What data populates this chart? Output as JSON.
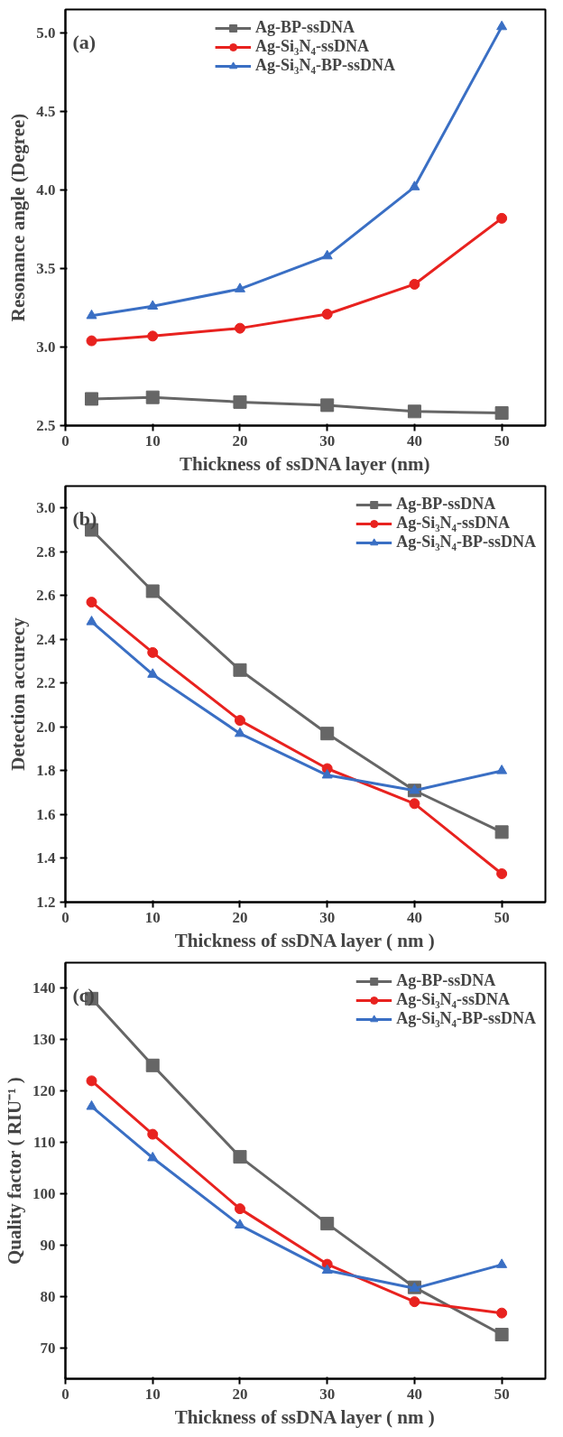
{
  "chart_data": [
    {
      "type": "line",
      "annotations": [
        "(a)"
      ],
      "xlabel": "Thickness of ssDNA layer (nm)",
      "ylabel": "Resonance angle (Degree)",
      "x": [
        3,
        10,
        20,
        30,
        40,
        50
      ],
      "xlim": [
        0,
        55
      ],
      "xticks": [
        0,
        10,
        20,
        30,
        40,
        50
      ],
      "ylim": [
        2.5,
        5.15
      ],
      "yticks": [
        2.5,
        {
          "value": 3,
          "label": "3.0"
        },
        3.5,
        {
          "value": 4,
          "label": "4.0"
        },
        4.5,
        {
          "value": 5,
          "label": "5.0"
        }
      ],
      "grid": false,
      "legend": "top",
      "line_style": "solid",
      "series": [
        {
          "name": "Ag-BP-ssDNA",
          "color": "#666666",
          "marker": "square",
          "values": [
            2.67,
            2.68,
            2.65,
            2.63,
            2.59,
            2.58
          ]
        },
        {
          "name": "Ag-Si₃N₄-ssDNA",
          "color": "#e8221f",
          "marker": "circle",
          "values": [
            3.04,
            3.07,
            3.12,
            3.21,
            3.4,
            3.82
          ]
        },
        {
          "name": "Ag-Si₃N₄-BP-ssDNA",
          "color": "#3a6fc4",
          "marker": "triangle",
          "values": [
            3.2,
            3.26,
            3.37,
            3.58,
            4.02,
            5.04
          ]
        }
      ]
    },
    {
      "type": "line",
      "annotations": [
        "(b)"
      ],
      "xlabel": "Thickness of ssDNA layer ( nm )",
      "ylabel": "Detection accurecy",
      "x": [
        3,
        10,
        20,
        30,
        40,
        50
      ],
      "xlim": [
        0,
        55
      ],
      "xticks": [
        0,
        10,
        20,
        30,
        40,
        50
      ],
      "ylim": [
        1.2,
        3.1
      ],
      "yticks": [
        1.2,
        1.4,
        1.6,
        1.8,
        {
          "value": 2,
          "label": "2.0"
        },
        2.2,
        2.4,
        2.6,
        2.8,
        {
          "value": 3,
          "label": "3.0"
        }
      ],
      "grid": false,
      "legend": "top right",
      "line_style": "solid",
      "series": [
        {
          "name": "Ag-BP-ssDNA",
          "color": "#666666",
          "marker": "square",
          "values": [
            2.9,
            2.62,
            2.26,
            1.97,
            1.71,
            1.52
          ]
        },
        {
          "name": "Ag-Si₃N₄-ssDNA",
          "color": "#e8221f",
          "marker": "circle",
          "values": [
            2.57,
            2.34,
            2.03,
            1.81,
            1.65,
            1.33
          ]
        },
        {
          "name": "Ag-Si₃N₄-BP-ssDNA",
          "color": "#3a6fc4",
          "marker": "triangle",
          "values": [
            2.48,
            2.24,
            1.97,
            1.78,
            1.71,
            1.8
          ]
        }
      ]
    },
    {
      "type": "line",
      "annotations": [
        "(c)"
      ],
      "xlabel": "Thickness of ssDNA layer ( nm )",
      "ylabel": "Quality factor ( RIU⁻¹ )",
      "x": [
        3,
        10,
        20,
        30,
        40,
        50
      ],
      "xlim": [
        0,
        55
      ],
      "xticks": [
        0,
        10,
        20,
        30,
        40,
        50
      ],
      "ylim": [
        64,
        145
      ],
      "yticks": [
        70,
        80,
        90,
        100,
        110,
        120,
        130,
        140
      ],
      "grid": false,
      "legend": "top right",
      "line_style": "solid",
      "series": [
        {
          "name": "Ag-BP-ssDNA",
          "color": "#666666",
          "marker": "square",
          "values": [
            138,
            125,
            107.2,
            94.2,
            81.8,
            72.6
          ]
        },
        {
          "name": "Ag-Si₃N₄-ssDNA",
          "color": "#e8221f",
          "marker": "circle",
          "values": [
            122,
            111.6,
            97.1,
            86.3,
            79,
            76.8
          ]
        },
        {
          "name": "Ag-Si₃N₄-BP-ssDNA",
          "color": "#3a6fc4",
          "marker": "triangle",
          "values": [
            117,
            107,
            93.9,
            85.1,
            81.6,
            86.2
          ]
        }
      ]
    }
  ]
}
